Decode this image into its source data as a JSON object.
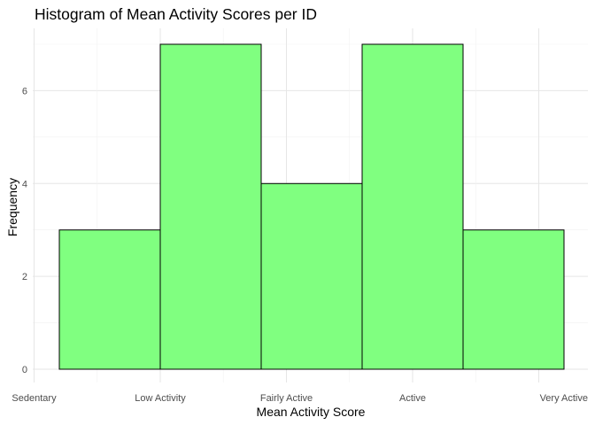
{
  "chart_data": {
    "type": "bar",
    "title": "Histogram of Mean Activity Scores per ID",
    "xlabel": "Mean Activity Score",
    "ylabel": "Frequency",
    "x_tick_labels": [
      "Sedentary",
      "Low Activity",
      "Fairly Active",
      "Active",
      "Very Active"
    ],
    "x_range": [
      1,
      5
    ],
    "bins": [
      {
        "start": 1.2,
        "end": 2.0,
        "value": 3
      },
      {
        "start": 2.0,
        "end": 2.8,
        "value": 7
      },
      {
        "start": 2.8,
        "end": 3.6,
        "value": 4
      },
      {
        "start": 3.6,
        "end": 4.4,
        "value": 7
      },
      {
        "start": 4.4,
        "end": 5.2,
        "value": 3
      }
    ],
    "y_ticks": [
      0,
      2,
      4,
      6
    ],
    "ylim": [
      0,
      7
    ],
    "grid": true,
    "bar_fill": "#80ff80",
    "bar_stroke": "#000000"
  }
}
